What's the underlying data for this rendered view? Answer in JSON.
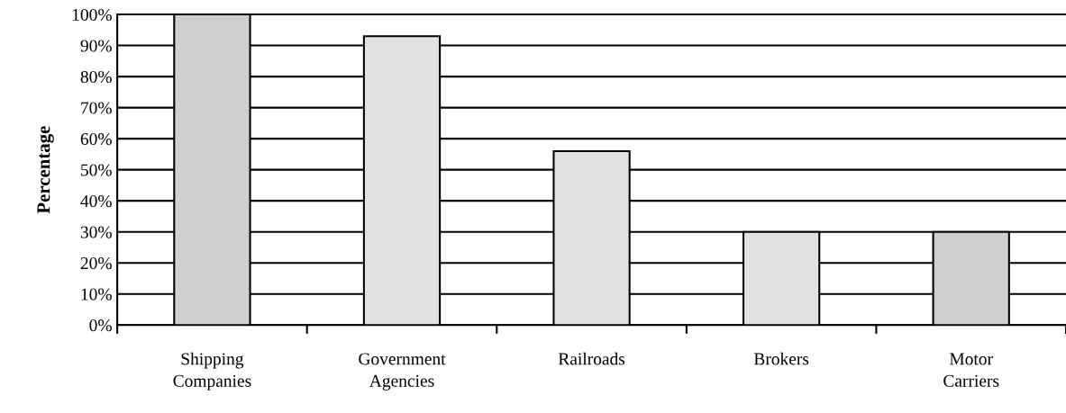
{
  "chart_data": {
    "type": "bar",
    "ylabel": "Percentage",
    "categories": [
      "Shipping\nCompanies",
      "Government\nAgencies",
      "Railroads",
      "Brokers",
      "Motor\nCarriers"
    ],
    "values": [
      100,
      93,
      56,
      30,
      30
    ],
    "colors": [
      "#cfcfcf",
      "#e2e2e2",
      "#e2e2e2",
      "#e2e2e2",
      "#cfcfcf"
    ],
    "ylim": [
      0,
      100
    ],
    "yticks": [
      {
        "value": 0,
        "label": "0%"
      },
      {
        "value": 10,
        "label": "10%"
      },
      {
        "value": 20,
        "label": "20%"
      },
      {
        "value": 30,
        "label": "30%"
      },
      {
        "value": 40,
        "label": "40%"
      },
      {
        "value": 50,
        "label": "50%"
      },
      {
        "value": 60,
        "label": "60%"
      },
      {
        "value": 70,
        "label": "70%"
      },
      {
        "value": 80,
        "label": "80%"
      },
      {
        "value": 90,
        "label": "90%"
      },
      {
        "value": 100,
        "label": "100%"
      }
    ],
    "grid": "y",
    "legend": false
  }
}
